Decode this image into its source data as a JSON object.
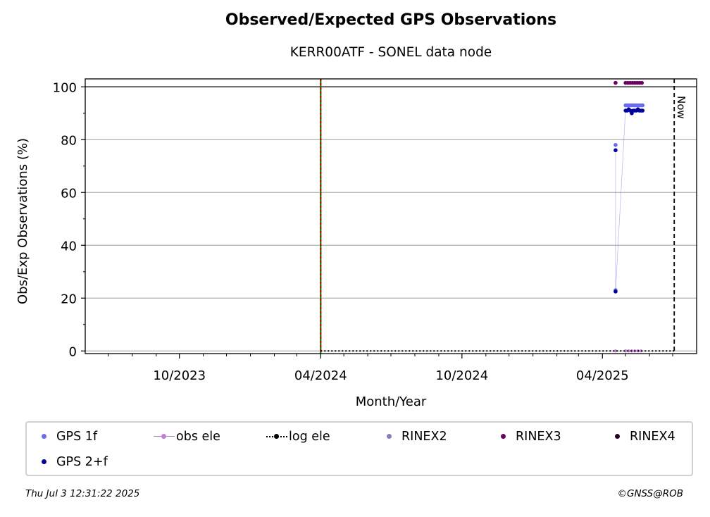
{
  "title": "Observed/Expected GPS Observations",
  "subtitle": "KERR00ATF - SONEL data node",
  "footer_left": "Thu Jul  3 12:31:22 2025",
  "footer_right": "©GNSS@ROB",
  "colors": {
    "gps1f": "#6b6bf2",
    "gps2f": "#00009c",
    "obs_ele": "#c080d0",
    "log_ele": "#000000",
    "rinex2": "#8a7ac0",
    "rinex3": "#6a0060",
    "rinex4": "#2a0020",
    "event_line_green": "#008000",
    "event_line_red": "#cc0000",
    "grid": "#b0b0b0"
  },
  "legend": [
    {
      "label": "GPS 1f",
      "key": "gps1f",
      "style": "dot"
    },
    {
      "label": "obs ele",
      "key": "obs_ele",
      "style": "line-dot"
    },
    {
      "label": "log ele",
      "key": "log_ele",
      "style": "dotted-line-dot"
    },
    {
      "label": "RINEX2",
      "key": "rinex2",
      "style": "dot"
    },
    {
      "label": "RINEX3",
      "key": "rinex3",
      "style": "dot"
    },
    {
      "label": "RINEX4",
      "key": "rinex4",
      "style": "dot"
    },
    {
      "label": "GPS 2+f",
      "key": "gps2f",
      "style": "dot"
    }
  ],
  "chart_data": {
    "type": "scatter",
    "title": "Observed/Expected GPS Observations",
    "subtitle": "KERR00ATF - SONEL data node",
    "xlabel": "Month/Year",
    "ylabel": "Obs/Exp Observations (%)",
    "x_is_date": true,
    "xlim": [
      "2023-06-01",
      "2025-08-01"
    ],
    "ylim": [
      -1,
      103
    ],
    "yticks": [
      0,
      20,
      40,
      60,
      80,
      100
    ],
    "xticks": [
      {
        "date": "2023-10-01",
        "label": "10/2023"
      },
      {
        "date": "2024-04-01",
        "label": "04/2024"
      },
      {
        "date": "2024-10-01",
        "label": "10/2024"
      },
      {
        "date": "2025-04-01",
        "label": "04/2025"
      }
    ],
    "grid": "horizontal",
    "reference_line_y": 100,
    "now_label": "Now",
    "now_date": "2025-07-03",
    "event_line_date": "2024-04-01",
    "series": [
      {
        "name": "GPS 1f",
        "key": "gps1f",
        "points": [
          [
            "2025-04-18",
            78
          ],
          [
            "2025-04-18",
            23
          ],
          [
            "2025-05-01",
            93
          ],
          [
            "2025-05-03",
            93
          ],
          [
            "2025-05-05",
            93
          ],
          [
            "2025-05-07",
            93
          ],
          [
            "2025-05-09",
            93
          ],
          [
            "2025-05-11",
            93
          ],
          [
            "2025-05-13",
            93
          ],
          [
            "2025-05-15",
            93
          ],
          [
            "2025-05-17",
            93
          ],
          [
            "2025-05-19",
            93
          ],
          [
            "2025-05-21",
            93
          ],
          [
            "2025-05-23",
            93
          ]
        ]
      },
      {
        "name": "GPS 2+f",
        "key": "gps2f",
        "points": [
          [
            "2025-04-18",
            76
          ],
          [
            "2025-04-18",
            22.5
          ],
          [
            "2025-05-01",
            91
          ],
          [
            "2025-05-03",
            91
          ],
          [
            "2025-05-05",
            91.5
          ],
          [
            "2025-05-07",
            91
          ],
          [
            "2025-05-09",
            90
          ],
          [
            "2025-05-11",
            91
          ],
          [
            "2025-05-13",
            91
          ],
          [
            "2025-05-15",
            91
          ],
          [
            "2025-05-17",
            91.5
          ],
          [
            "2025-05-19",
            91
          ],
          [
            "2025-05-21",
            91
          ],
          [
            "2025-05-23",
            91
          ]
        ]
      },
      {
        "name": "RINEX3",
        "key": "rinex3",
        "points": [
          [
            "2025-04-18",
            101.5
          ],
          [
            "2025-05-01",
            101.5
          ],
          [
            "2025-05-04",
            101.5
          ],
          [
            "2025-05-07",
            101.5
          ],
          [
            "2025-05-10",
            101.5
          ],
          [
            "2025-05-13",
            101.5
          ],
          [
            "2025-05-16",
            101.5
          ],
          [
            "2025-05-19",
            101.5
          ],
          [
            "2025-05-22",
            101.5
          ]
        ]
      },
      {
        "name": "obs ele",
        "key": "obs_ele",
        "points": [
          [
            "2025-04-18",
            0
          ],
          [
            "2025-05-01",
            0
          ],
          [
            "2025-05-05",
            0
          ],
          [
            "2025-05-09",
            0
          ],
          [
            "2025-05-13",
            0
          ],
          [
            "2025-05-17",
            0
          ],
          [
            "2025-05-21",
            0
          ]
        ]
      },
      {
        "name": "log ele",
        "key": "log_ele",
        "points": [
          [
            "2024-04-01",
            0
          ],
          [
            "2025-07-03",
            0
          ]
        ]
      }
    ]
  }
}
